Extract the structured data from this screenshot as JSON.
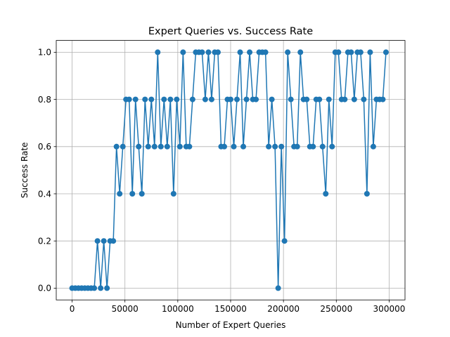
{
  "chart_data": {
    "type": "line",
    "title": "Expert Queries vs. Success Rate",
    "xlabel": "Number of Expert Queries",
    "ylabel": "Success Rate",
    "xlim": [
      -15000,
      315000
    ],
    "ylim": [
      -0.05,
      1.05
    ],
    "xticks": [
      0,
      50000,
      100000,
      150000,
      200000,
      250000,
      300000
    ],
    "xtick_labels": [
      "0",
      "50000",
      "100000",
      "150000",
      "200000",
      "250000",
      "300000"
    ],
    "yticks": [
      0.0,
      0.2,
      0.4,
      0.6,
      0.8,
      1.0
    ],
    "ytick_labels": [
      "0.0",
      "0.2",
      "0.4",
      "0.6",
      "0.8",
      "1.0"
    ],
    "grid": true,
    "marker": "circle",
    "line_color": "#1f77b4",
    "series": [
      {
        "x": [
          0,
          3000,
          6000,
          9000,
          12000,
          15000,
          18000,
          21000,
          24000,
          27000,
          30000,
          33000,
          36000,
          39000,
          42000,
          45000,
          48000,
          51000,
          54000,
          57000,
          60000,
          63000,
          66000,
          69000,
          72000,
          75000,
          78000,
          81000,
          84000,
          87000,
          90000,
          93000,
          96000,
          99000,
          102000,
          105000,
          108000,
          111000,
          114000,
          117000,
          120000,
          123000,
          126000,
          129000,
          132000,
          135000,
          138000,
          141000,
          144000,
          147000,
          150000,
          153000,
          156000,
          159000,
          162000,
          165000,
          168000,
          171000,
          174000,
          177000,
          180000,
          183000,
          186000,
          189000,
          192000,
          195000,
          198000,
          201000,
          204000,
          207000,
          210000,
          213000,
          216000,
          219000,
          222000,
          225000,
          228000,
          231000,
          234000,
          237000,
          240000,
          243000,
          246000,
          249000,
          252000,
          255000,
          258000,
          261000,
          264000,
          267000,
          270000,
          273000,
          276000,
          279000,
          282000,
          285000,
          288000,
          291000,
          294000,
          297000
        ],
        "y": [
          0.0,
          0.0,
          0.0,
          0.0,
          0.0,
          0.0,
          0.0,
          0.0,
          0.2,
          0.0,
          0.2,
          0.0,
          0.2,
          0.2,
          0.6,
          0.4,
          0.6,
          0.8,
          0.8,
          0.4,
          0.8,
          0.6,
          0.4,
          0.8,
          0.6,
          0.8,
          0.6,
          1.0,
          0.6,
          0.8,
          0.6,
          0.8,
          0.4,
          0.8,
          0.6,
          1.0,
          0.6,
          0.6,
          0.8,
          1.0,
          1.0,
          1.0,
          0.8,
          1.0,
          0.8,
          1.0,
          1.0,
          0.6,
          0.6,
          0.8,
          0.8,
          0.6,
          0.8,
          1.0,
          0.6,
          0.8,
          1.0,
          0.8,
          0.8,
          1.0,
          1.0,
          1.0,
          0.6,
          0.8,
          0.6,
          0.0,
          0.6,
          0.2,
          1.0,
          0.8,
          0.6,
          0.6,
          1.0,
          0.8,
          0.8,
          0.6,
          0.6,
          0.8,
          0.8,
          0.6,
          0.4,
          0.8,
          0.6,
          1.0,
          1.0,
          0.8,
          0.8,
          1.0,
          1.0,
          0.8,
          1.0,
          1.0,
          0.8,
          0.4,
          1.0,
          0.6,
          0.8,
          0.8,
          0.8,
          1.0
        ]
      }
    ]
  }
}
